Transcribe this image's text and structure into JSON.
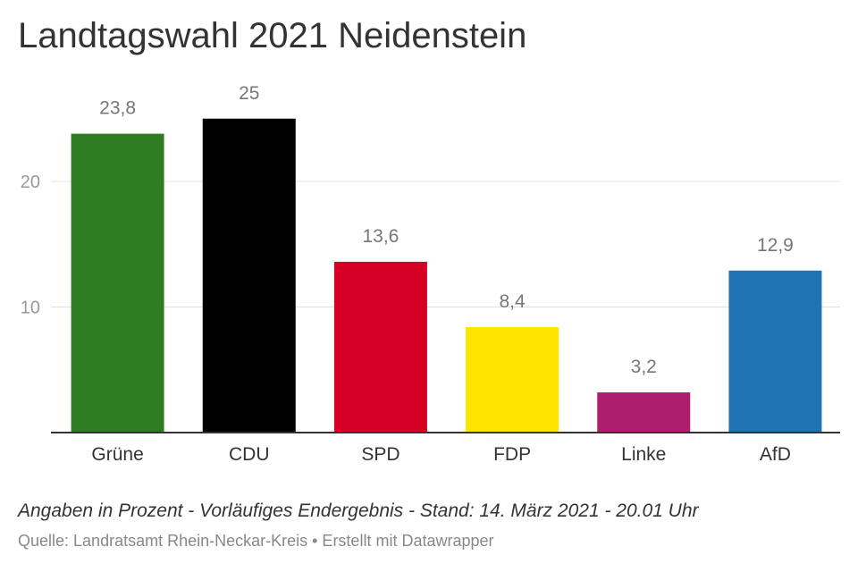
{
  "header": {
    "title": "Landtagswahl 2021 Neidenstein"
  },
  "footer": {
    "note": "Angaben in Prozent - Vorläufiges Endergebnis - Stand: 14. März 2021 - 20.01 Uhr",
    "source": "Quelle: Landratsamt Rhein-Neckar-Kreis • Erstellt mit Datawrapper"
  },
  "chart_data": {
    "type": "bar",
    "title": "Landtagswahl 2021 Neidenstein",
    "categories": [
      "Grüne",
      "CDU",
      "SPD",
      "FDP",
      "Linke",
      "AfD"
    ],
    "values": [
      23.8,
      25,
      13.6,
      8.4,
      3.2,
      12.9
    ],
    "value_labels": [
      "23,8",
      "25",
      "13,6",
      "8,4",
      "3,2",
      "12,9"
    ],
    "colors": [
      "#2e7d23",
      "#000000",
      "#d50023",
      "#ffe500",
      "#ad1f6e",
      "#1f75b4"
    ],
    "yticks": [
      10,
      20
    ],
    "ylim": [
      0,
      25
    ],
    "grid": true,
    "legend": "none",
    "xlabel": "",
    "ylabel": ""
  }
}
